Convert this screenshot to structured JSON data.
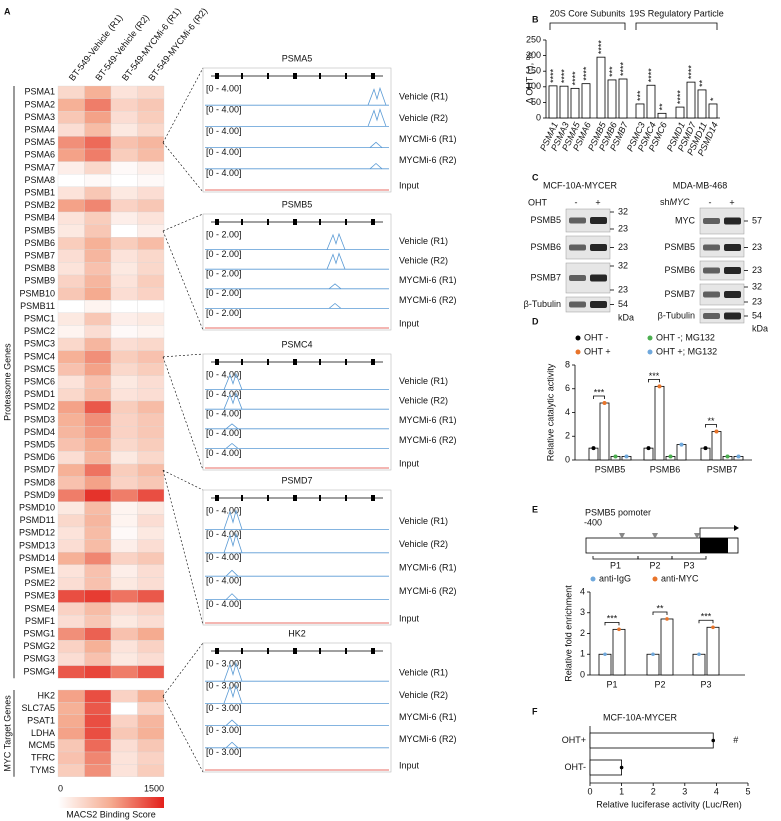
{
  "panel_labels": [
    "A",
    "B",
    "C",
    "D",
    "E",
    "F"
  ],
  "heatmap": {
    "columns": [
      "BT-549-Vehicle (R1)",
      "BT-549-Vehicle (R2)",
      "BT-549-MYCMi-6 (R1)",
      "BT-549-MYCMi-6 (R2)"
    ],
    "proteasome_label": "Proteasome Genes",
    "proteasome_genes": [
      "PSMA1",
      "PSMA2",
      "PSMA3",
      "PSMA4",
      "PSMA5",
      "PSMA6",
      "PSMA7",
      "PSMA8",
      "PSMB1",
      "PSMB2",
      "PSMB4",
      "PSMB5",
      "PSMB6",
      "PSMB7",
      "PSMB8",
      "PSMB9",
      "PSMB10",
      "PSMB11",
      "PSMC1",
      "PSMC2",
      "PSMC3",
      "PSMC4",
      "PSMC5",
      "PSMC6",
      "PSMD1",
      "PSMD2",
      "PSMD3",
      "PSMD4",
      "PSMD5",
      "PSMD6",
      "PSMD7",
      "PSMD8",
      "PSMD9",
      "PSMD10",
      "PSMD11",
      "PSMD12",
      "PSMD13",
      "PSMD14",
      "PSME1",
      "PSME2",
      "PSME3",
      "PSME4",
      "PSMF1",
      "PSMG1",
      "PSMG2",
      "PSMG3",
      "PSMG4"
    ],
    "proteasome_values": [
      [
        350,
        700,
        250,
        350
      ],
      [
        700,
        1000,
        400,
        500
      ],
      [
        500,
        800,
        300,
        450
      ],
      [
        300,
        600,
        200,
        350
      ],
      [
        900,
        1100,
        550,
        650
      ],
      [
        800,
        1000,
        450,
        600
      ],
      [
        150,
        350,
        50,
        150
      ],
      [
        0,
        50,
        0,
        50
      ],
      [
        250,
        500,
        200,
        300
      ],
      [
        800,
        950,
        400,
        500
      ],
      [
        250,
        450,
        150,
        250
      ],
      [
        200,
        500,
        0,
        150
      ],
      [
        450,
        700,
        450,
        600
      ],
      [
        300,
        650,
        250,
        350
      ],
      [
        250,
        550,
        200,
        350
      ],
      [
        400,
        650,
        250,
        450
      ],
      [
        500,
        750,
        300,
        400
      ],
      [
        0,
        100,
        0,
        0
      ],
      [
        200,
        500,
        150,
        200
      ],
      [
        100,
        300,
        50,
        100
      ],
      [
        350,
        650,
        300,
        350
      ],
      [
        700,
        900,
        450,
        550
      ],
      [
        550,
        800,
        350,
        450
      ],
      [
        250,
        550,
        200,
        300
      ],
      [
        350,
        600,
        250,
        300
      ],
      [
        800,
        1200,
        450,
        600
      ],
      [
        700,
        900,
        400,
        500
      ],
      [
        650,
        850,
        400,
        500
      ],
      [
        550,
        750,
        350,
        450
      ],
      [
        300,
        650,
        200,
        350
      ],
      [
        700,
        1050,
        450,
        600
      ],
      [
        550,
        800,
        400,
        500
      ],
      [
        1000,
        1400,
        1000,
        1250
      ],
      [
        200,
        600,
        100,
        200
      ],
      [
        350,
        650,
        100,
        300
      ],
      [
        250,
        600,
        50,
        200
      ],
      [
        300,
        600,
        150,
        300
      ],
      [
        700,
        950,
        400,
        500
      ],
      [
        250,
        550,
        150,
        300
      ],
      [
        300,
        550,
        200,
        300
      ],
      [
        1250,
        1350,
        1050,
        1200
      ],
      [
        400,
        600,
        300,
        400
      ],
      [
        300,
        500,
        200,
        300
      ],
      [
        900,
        1150,
        550,
        750
      ],
      [
        400,
        700,
        250,
        400
      ],
      [
        300,
        550,
        200,
        300
      ],
      [
        1200,
        1300,
        1000,
        1200
      ]
    ],
    "myc_label": "MYC Target Genes",
    "myc_genes": [
      "HK2",
      "SLC7A5",
      "PSAT1",
      "LDHA",
      "MCM5",
      "TFRC",
      "TYMS"
    ],
    "myc_values": [
      [
        800,
        1250,
        400,
        700
      ],
      [
        700,
        1200,
        0,
        400
      ],
      [
        750,
        1250,
        400,
        650
      ],
      [
        800,
        1250,
        500,
        700
      ],
      [
        500,
        1100,
        300,
        500
      ],
      [
        550,
        950,
        250,
        400
      ],
      [
        450,
        900,
        250,
        450
      ]
    ],
    "range": [
      0,
      1500
    ],
    "colorbar_ticks": [
      0,
      1500
    ],
    "colorbar_label": "MACS2 Binding Score",
    "colors": [
      "#ffffff",
      "#f5ab90",
      "#e3201b"
    ]
  },
  "tracks": {
    "track_labels": [
      "Vehicle (R1)",
      "Vehicle (R2)",
      "MYCMi-6 (R1)",
      "MYCMi-6 (R2)",
      "Input"
    ],
    "genes": [
      {
        "name": "PSMA5",
        "scale": "[0 - 4.00]"
      },
      {
        "name": "PSMB5",
        "scale": "[0 - 2.00]"
      },
      {
        "name": "PSMC4",
        "scale": "[0 - 4.00]"
      },
      {
        "name": "PSMD7",
        "scale": "[0 - 4.00]"
      },
      {
        "name": "HK2",
        "scale": "[0 - 3.00]"
      }
    ],
    "track_color": "#5b9bd5",
    "input_color": "#e03c31"
  },
  "chart_b": {
    "groups": [
      "20S Core Subunits",
      "19S Regulatory Particle"
    ],
    "y_label": "Δ OHT (-), %",
    "categories": [
      "PSMA1",
      "PSMA3",
      "PSMA5",
      "PSMA6",
      "PSMB5",
      "PSMB6",
      "PSMB7",
      "PSMC3",
      "PSMC4",
      "PSMC6",
      "PSMD1",
      "PSMD7",
      "PSMD11",
      "PSMD14"
    ],
    "values": [
      103,
      102,
      95,
      110,
      195,
      122,
      125,
      45,
      105,
      15,
      35,
      115,
      90,
      45
    ],
    "significance": [
      "****",
      "****",
      "****",
      "****",
      "****",
      "***",
      "****",
      "***",
      "****",
      "**",
      "****",
      "****",
      "**",
      "*"
    ],
    "ylim": [
      0,
      250
    ],
    "yticks": [
      0,
      50,
      100,
      150,
      200,
      250
    ],
    "color": "#ffffff"
  },
  "blots": {
    "left": {
      "title": "MCF-10A-MYCER",
      "treatment": "OHT",
      "lanes": [
        "-",
        "+"
      ],
      "rows": [
        {
          "label": "PSMB5",
          "markers": [
            32,
            23
          ]
        },
        {
          "label": "PSMB6",
          "markers": [
            23
          ]
        },
        {
          "label": "PSMB7",
          "markers": [
            32,
            23
          ]
        },
        {
          "label": "β-Tubulin",
          "markers": [
            54
          ]
        }
      ],
      "unit": "kDa"
    },
    "right": {
      "title": "MDA-MB-468",
      "treatment_prefix": "sh",
      "treatment_gene": "MYC",
      "lanes": [
        "-",
        "+"
      ],
      "rows": [
        {
          "label": "MYC",
          "markers": [
            57
          ]
        },
        {
          "label": "PSMB5",
          "markers": [
            23
          ]
        },
        {
          "label": "PSMB6",
          "markers": [
            23
          ]
        },
        {
          "label": "PSMB7",
          "markers": [
            32,
            23
          ]
        },
        {
          "label": "β-Tubulin",
          "markers": [
            54
          ]
        }
      ],
      "unit": "kDa"
    }
  },
  "chart_d": {
    "y_label": "Relative catalytic activity",
    "categories": [
      "PSMB5",
      "PSMB6",
      "PSMB7"
    ],
    "series": [
      {
        "name": "OHT -",
        "color": "#000000",
        "values": [
          1,
          1,
          1
        ]
      },
      {
        "name": "OHT +",
        "color": "#e8742a",
        "values": [
          4.8,
          6.2,
          2.4
        ]
      },
      {
        "name": "OHT -; MG132",
        "color": "#4caf50",
        "values": [
          0.3,
          0.3,
          0.3
        ]
      },
      {
        "name": "OHT +; MG132",
        "color": "#6fa8dc",
        "values": [
          0.3,
          1.3,
          0.3
        ]
      }
    ],
    "ylim": [
      0,
      8
    ],
    "yticks": [
      0,
      2,
      4,
      6,
      8
    ],
    "significance": [
      "***",
      "***",
      "**"
    ]
  },
  "chart_e": {
    "promoter": {
      "title": "PSMB5 pomoter",
      "position": -400,
      "regions": [
        "P1",
        "P2",
        "P3"
      ]
    },
    "y_label": "Relative fold enrichment",
    "categories": [
      "P1",
      "P2",
      "P3"
    ],
    "series": [
      {
        "name": "anti-IgG",
        "color": "#6fa8dc",
        "values": [
          1,
          1,
          1
        ]
      },
      {
        "name": "anti-MYC",
        "color": "#e8742a",
        "values": [
          2.2,
          2.7,
          2.3
        ]
      }
    ],
    "ylim": [
      0,
      4
    ],
    "yticks": [
      0,
      1,
      2,
      3,
      4
    ],
    "significance": [
      "***",
      "**",
      "***"
    ]
  },
  "chart_f": {
    "title": "MCF-10A-MYCER",
    "categories": [
      "OHT+",
      "OHT-"
    ],
    "values": [
      3.9,
      1
    ],
    "xlim": [
      0,
      5
    ],
    "xticks": [
      0,
      1,
      2,
      3,
      4,
      5
    ],
    "x_label": "Relative luciferase activity (Luc/Ren)",
    "annotation": "#",
    "color": "#ffffff"
  }
}
